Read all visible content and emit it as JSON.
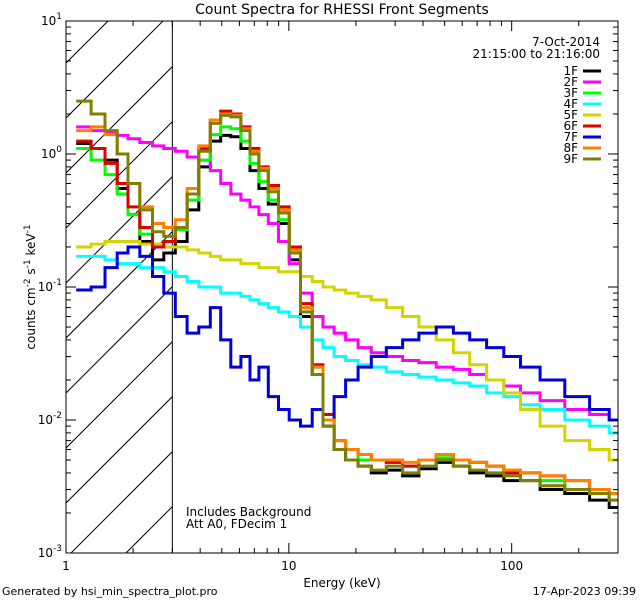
{
  "chart_data": {
    "type": "line",
    "title": "Count Spectra for RHESSI Front Segments",
    "xlabel": "Energy (keV)",
    "ylabel_parts": [
      "counts cm",
      "-2",
      " s",
      "-1",
      " keV",
      "-1"
    ],
    "xscale": "log",
    "yscale": "log",
    "xlim": [
      1,
      300
    ],
    "ylim": [
      0.001,
      10
    ],
    "x_ticks": [
      {
        "value": 1,
        "label": "1"
      },
      {
        "value": 10,
        "label": "10"
      },
      {
        "value": 100,
        "label": "100"
      }
    ],
    "y_ticks": [
      {
        "value": 0.001,
        "base": "10",
        "exp": "-3"
      },
      {
        "value": 0.01,
        "base": "10",
        "exp": "-2"
      },
      {
        "value": 0.1,
        "base": "10",
        "exp": "-1"
      },
      {
        "value": 1,
        "base": "10",
        "exp": "0"
      },
      {
        "value": 10,
        "base": "10",
        "exp": "1"
      }
    ],
    "hatched_below_energy": 3,
    "date": "7-Oct-2014",
    "time_range": "21:15:00 to 21:16:00",
    "notes": [
      "Includes Background",
      "Att A0, FDecim 1"
    ],
    "series": [
      {
        "name": "1F",
        "color": "#000000",
        "x": [
          1.2,
          1.4,
          1.6,
          1.8,
          2.0,
          2.3,
          2.6,
          2.9,
          3.3,
          3.7,
          4.2,
          4.7,
          5.2,
          5.8,
          6.4,
          7.0,
          7.7,
          8.5,
          9.5,
          10.6,
          12.0,
          13.5,
          15.0,
          17.0,
          19.0,
          22.0,
          25.0,
          30.0,
          35.0,
          42.0,
          50.0,
          60.0,
          70.0,
          85.0,
          100.0,
          120.0,
          150.0,
          200.0,
          250.0,
          300.0
        ],
        "y": [
          1.2,
          1.1,
          0.9,
          0.55,
          0.35,
          0.22,
          0.16,
          0.18,
          0.22,
          0.38,
          0.8,
          1.25,
          1.38,
          1.35,
          1.1,
          0.75,
          0.55,
          0.42,
          0.3,
          0.16,
          0.06,
          0.022,
          0.009,
          0.006,
          0.005,
          0.0045,
          0.004,
          0.0042,
          0.0038,
          0.0043,
          0.0048,
          0.0045,
          0.004,
          0.0038,
          0.0035,
          0.0035,
          0.003,
          0.0028,
          0.0025,
          0.0022
        ]
      },
      {
        "name": "2F",
        "color": "#ff00ff",
        "x": [
          1.2,
          1.4,
          1.6,
          1.8,
          2.0,
          2.3,
          2.6,
          2.9,
          3.3,
          3.7,
          4.2,
          4.7,
          5.2,
          5.8,
          6.4,
          7.0,
          7.7,
          8.5,
          9.5,
          10.6,
          12.0,
          13.5,
          15.0,
          17.0,
          19.0,
          22.0,
          25.0,
          30.0,
          35.0,
          42.0,
          50.0,
          60.0,
          70.0,
          85.0,
          100.0,
          120.0,
          150.0,
          200.0,
          250.0,
          300.0
        ],
        "y": [
          1.6,
          1.5,
          1.45,
          1.38,
          1.3,
          1.22,
          1.15,
          1.1,
          1.05,
          0.95,
          0.9,
          0.75,
          0.6,
          0.5,
          0.45,
          0.4,
          0.35,
          0.3,
          0.22,
          0.15,
          0.09,
          0.06,
          0.05,
          0.045,
          0.04,
          0.035,
          0.032,
          0.03,
          0.028,
          0.027,
          0.025,
          0.024,
          0.022,
          0.02,
          0.018,
          0.016,
          0.014,
          0.012,
          0.011,
          0.01
        ]
      },
      {
        "name": "3F",
        "color": "#00ff00",
        "x": [
          1.2,
          1.4,
          1.6,
          1.8,
          2.0,
          2.3,
          2.6,
          2.9,
          3.3,
          3.7,
          4.2,
          4.7,
          5.2,
          5.8,
          6.4,
          7.0,
          7.7,
          8.5,
          9.5,
          10.6,
          12.0,
          13.5,
          15.0,
          17.0,
          19.0,
          22.0,
          25.0,
          30.0,
          35.0,
          42.0,
          50.0,
          60.0,
          70.0,
          85.0,
          100.0,
          120.0,
          150.0,
          200.0,
          250.0,
          300.0
        ],
        "y": [
          1.1,
          0.9,
          0.7,
          0.5,
          0.35,
          0.25,
          0.2,
          0.22,
          0.27,
          0.45,
          0.9,
          1.4,
          1.6,
          1.55,
          1.25,
          0.85,
          0.62,
          0.45,
          0.32,
          0.18,
          0.07,
          0.025,
          0.01,
          0.007,
          0.006,
          0.005,
          0.005,
          0.0048,
          0.0045,
          0.005,
          0.0052,
          0.005,
          0.0048,
          0.0045,
          0.004,
          0.004,
          0.0035,
          0.003,
          0.0028,
          0.0025
        ]
      },
      {
        "name": "4F",
        "color": "#00ffff",
        "x": [
          1.2,
          1.4,
          1.6,
          1.8,
          2.0,
          2.3,
          2.6,
          2.9,
          3.3,
          3.7,
          4.2,
          4.7,
          5.2,
          5.8,
          6.4,
          7.0,
          7.7,
          8.5,
          9.5,
          10.6,
          12.0,
          13.5,
          15.0,
          17.0,
          19.0,
          22.0,
          25.0,
          30.0,
          35.0,
          42.0,
          50.0,
          60.0,
          70.0,
          85.0,
          100.0,
          120.0,
          150.0,
          200.0,
          250.0,
          300.0
        ],
        "y": [
          0.17,
          0.17,
          0.16,
          0.15,
          0.15,
          0.14,
          0.14,
          0.13,
          0.12,
          0.11,
          0.1,
          0.1,
          0.09,
          0.09,
          0.085,
          0.08,
          0.075,
          0.07,
          0.065,
          0.06,
          0.05,
          0.04,
          0.035,
          0.03,
          0.028,
          0.026,
          0.025,
          0.023,
          0.022,
          0.021,
          0.02,
          0.019,
          0.018,
          0.016,
          0.015,
          0.013,
          0.012,
          0.01,
          0.009,
          0.008
        ]
      },
      {
        "name": "5F",
        "color": "#d4d400",
        "x": [
          1.2,
          1.4,
          1.6,
          1.8,
          2.0,
          2.3,
          2.6,
          2.9,
          3.3,
          3.7,
          4.2,
          4.7,
          5.2,
          5.8,
          6.4,
          7.0,
          7.7,
          8.5,
          9.5,
          10.6,
          12.0,
          13.5,
          15.0,
          17.0,
          19.0,
          22.0,
          25.0,
          30.0,
          35.0,
          42.0,
          50.0,
          60.0,
          70.0,
          85.0,
          100.0,
          120.0,
          150.0,
          200.0,
          250.0,
          300.0
        ],
        "y": [
          0.2,
          0.21,
          0.22,
          0.22,
          0.22,
          0.21,
          0.21,
          0.2,
          0.2,
          0.19,
          0.18,
          0.17,
          0.16,
          0.16,
          0.15,
          0.15,
          0.14,
          0.14,
          0.13,
          0.13,
          0.12,
          0.11,
          0.1,
          0.095,
          0.09,
          0.085,
          0.08,
          0.07,
          0.06,
          0.05,
          0.04,
          0.032,
          0.026,
          0.02,
          0.016,
          0.012,
          0.009,
          0.007,
          0.006,
          0.005
        ]
      },
      {
        "name": "6F",
        "color": "#dd0000",
        "x": [
          1.2,
          1.4,
          1.6,
          1.8,
          2.0,
          2.3,
          2.6,
          2.9,
          3.3,
          3.7,
          4.2,
          4.7,
          5.2,
          5.8,
          6.4,
          7.0,
          7.7,
          8.5,
          9.5,
          10.6,
          12.0,
          13.5,
          15.0,
          17.0,
          19.0,
          22.0,
          25.0,
          30.0,
          35.0,
          42.0,
          50.0,
          60.0,
          70.0,
          85.0,
          100.0,
          120.0,
          150.0,
          200.0,
          250.0,
          300.0
        ],
        "y": [
          1.25,
          1.1,
          0.85,
          0.6,
          0.4,
          0.28,
          0.2,
          0.22,
          0.28,
          0.5,
          1.1,
          1.8,
          2.1,
          2.0,
          1.6,
          1.1,
          0.8,
          0.58,
          0.4,
          0.2,
          0.075,
          0.026,
          0.011,
          0.007,
          0.006,
          0.0055,
          0.005,
          0.0048,
          0.0045,
          0.005,
          0.0055,
          0.005,
          0.0048,
          0.0045,
          0.004,
          0.004,
          0.0038,
          0.0035,
          0.003,
          0.0028
        ]
      },
      {
        "name": "7F",
        "color": "#0000dd",
        "x": [
          1.2,
          1.4,
          1.6,
          1.8,
          2.0,
          2.3,
          2.6,
          2.9,
          3.3,
          3.7,
          4.2,
          4.7,
          5.2,
          5.8,
          6.4,
          7.0,
          7.7,
          8.5,
          9.5,
          10.6,
          12.0,
          13.5,
          15.0,
          17.0,
          19.0,
          22.0,
          25.0,
          30.0,
          35.0,
          42.0,
          50.0,
          60.0,
          70.0,
          85.0,
          100.0,
          120.0,
          150.0,
          200.0,
          250.0,
          300.0
        ],
        "y": [
          0.095,
          0.1,
          0.14,
          0.18,
          0.2,
          0.17,
          0.12,
          0.09,
          0.06,
          0.045,
          0.05,
          0.07,
          0.04,
          0.025,
          0.03,
          0.02,
          0.025,
          0.015,
          0.012,
          0.01,
          0.009,
          0.012,
          0.01,
          0.015,
          0.02,
          0.025,
          0.03,
          0.035,
          0.04,
          0.045,
          0.05,
          0.045,
          0.04,
          0.035,
          0.03,
          0.025,
          0.02,
          0.015,
          0.012,
          0.01
        ]
      },
      {
        "name": "8F",
        "color": "#ff8000",
        "x": [
          1.2,
          1.4,
          1.6,
          1.8,
          2.0,
          2.3,
          2.6,
          2.9,
          3.3,
          3.7,
          4.2,
          4.7,
          5.2,
          5.8,
          6.4,
          7.0,
          7.7,
          8.5,
          9.5,
          10.6,
          12.0,
          13.5,
          15.0,
          17.0,
          19.0,
          22.0,
          25.0,
          30.0,
          35.0,
          42.0,
          50.0,
          60.0,
          70.0,
          85.0,
          100.0,
          120.0,
          150.0,
          200.0,
          250.0,
          300.0
        ],
        "y": [
          1.5,
          1.6,
          1.4,
          1.0,
          0.6,
          0.4,
          0.3,
          0.28,
          0.32,
          0.55,
          1.15,
          1.8,
          2.0,
          1.95,
          1.55,
          1.05,
          0.78,
          0.55,
          0.38,
          0.19,
          0.07,
          0.025,
          0.01,
          0.007,
          0.006,
          0.0055,
          0.005,
          0.005,
          0.0048,
          0.005,
          0.0055,
          0.005,
          0.0048,
          0.0045,
          0.0042,
          0.004,
          0.0038,
          0.0035,
          0.003,
          0.0028
        ]
      },
      {
        "name": "9F",
        "color": "#808000",
        "x": [
          1.2,
          1.4,
          1.6,
          1.8,
          2.0,
          2.3,
          2.6,
          2.9,
          3.3,
          3.7,
          4.2,
          4.7,
          5.2,
          5.8,
          6.4,
          7.0,
          7.7,
          8.5,
          9.5,
          10.6,
          12.0,
          13.5,
          15.0,
          17.0,
          19.0,
          22.0,
          25.0,
          30.0,
          35.0,
          42.0,
          50.0,
          60.0,
          70.0,
          85.0,
          100.0,
          120.0,
          150.0,
          200.0,
          250.0,
          300.0
        ],
        "y": [
          2.5,
          2.0,
          1.5,
          1.0,
          0.6,
          0.38,
          0.26,
          0.24,
          0.28,
          0.5,
          1.05,
          1.7,
          1.95,
          1.9,
          1.5,
          1.0,
          0.75,
          0.52,
          0.36,
          0.18,
          0.065,
          0.022,
          0.009,
          0.006,
          0.005,
          0.0045,
          0.0042,
          0.0045,
          0.004,
          0.0045,
          0.005,
          0.0045,
          0.0042,
          0.004,
          0.0038,
          0.0035,
          0.0032,
          0.003,
          0.0028,
          0.0025
        ]
      }
    ]
  },
  "footer": {
    "generated_by": "Generated by hsi_min_spectra_plot.pro",
    "timestamp": "17-Apr-2023 09:39"
  }
}
